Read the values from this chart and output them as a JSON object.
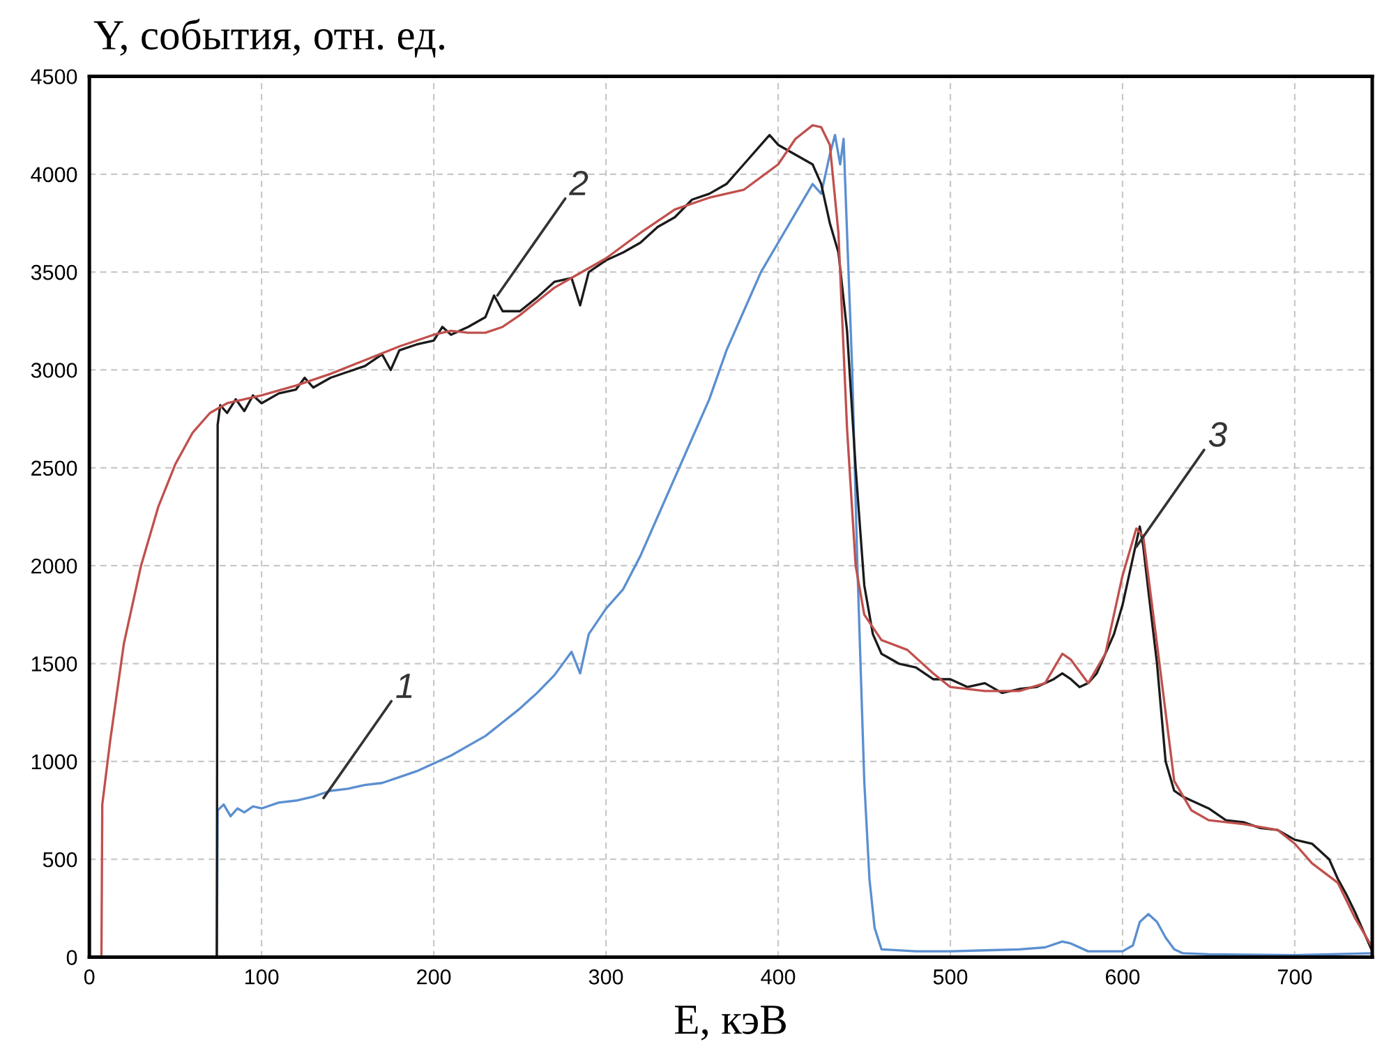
{
  "chart_data": {
    "type": "line",
    "ylabel": "Y, события, отн. ед.",
    "xlabel": "E, кэВ",
    "xlim": [
      0,
      745
    ],
    "ylim": [
      0,
      4500
    ],
    "xticks": [
      0,
      100,
      200,
      300,
      400,
      500,
      600,
      700
    ],
    "yticks": [
      0,
      500,
      1000,
      1500,
      2000,
      2500,
      3000,
      3500,
      4000,
      4500
    ],
    "grid": true,
    "series": [
      {
        "color": "#5b8fd0",
        "x": [
          0,
          74,
          74.5,
          78,
          82,
          86,
          90,
          95,
          100,
          110,
          120,
          130,
          140,
          150,
          160,
          170,
          180,
          190,
          200,
          210,
          220,
          230,
          240,
          250,
          260,
          270,
          280,
          285,
          290,
          300,
          310,
          320,
          330,
          340,
          350,
          360,
          370,
          380,
          390,
          400,
          410,
          420,
          425,
          430,
          433,
          436,
          438,
          440,
          443,
          446,
          450,
          453,
          456,
          460,
          480,
          500,
          520,
          540,
          555,
          565,
          570,
          580,
          600,
          606,
          610,
          615,
          620,
          625,
          630,
          635,
          650,
          700,
          745
        ],
        "values": [
          0,
          0,
          750,
          780,
          720,
          760,
          740,
          770,
          760,
          790,
          800,
          820,
          850,
          860,
          880,
          890,
          920,
          950,
          990,
          1030,
          1080,
          1130,
          1200,
          1270,
          1350,
          1440,
          1560,
          1450,
          1650,
          1780,
          1880,
          2050,
          2250,
          2450,
          2650,
          2850,
          3100,
          3300,
          3500,
          3650,
          3800,
          3950,
          3900,
          4100,
          4200,
          4050,
          4180,
          3700,
          3000,
          2000,
          900,
          400,
          150,
          40,
          30,
          30,
          35,
          40,
          50,
          80,
          70,
          30,
          30,
          60,
          180,
          220,
          180,
          100,
          40,
          20,
          15,
          10,
          20
        ]
      },
      {
        "color": "#1a1a1a",
        "x": [
          0,
          74,
          74.5,
          76,
          80,
          85,
          90,
          95,
          100,
          110,
          120,
          125,
          130,
          140,
          150,
          160,
          170,
          175,
          180,
          190,
          200,
          205,
          210,
          220,
          230,
          235,
          240,
          250,
          260,
          270,
          280,
          285,
          290,
          300,
          310,
          320,
          330,
          340,
          350,
          360,
          370,
          380,
          390,
          395,
          400,
          410,
          420,
          425,
          430,
          435,
          440,
          445,
          450,
          455,
          460,
          470,
          480,
          490,
          500,
          510,
          520,
          530,
          540,
          550,
          560,
          565,
          570,
          575,
          580,
          585,
          590,
          595,
          600,
          605,
          610,
          612,
          615,
          620,
          625,
          630,
          635,
          640,
          650,
          660,
          670,
          680,
          690,
          700,
          710,
          720,
          725,
          730,
          735,
          740,
          745
        ],
        "values": [
          0,
          0,
          2720,
          2820,
          2780,
          2850,
          2790,
          2870,
          2830,
          2880,
          2900,
          2960,
          2910,
          2960,
          2990,
          3020,
          3080,
          3000,
          3100,
          3130,
          3150,
          3220,
          3180,
          3220,
          3270,
          3380,
          3300,
          3300,
          3370,
          3450,
          3470,
          3330,
          3500,
          3560,
          3600,
          3650,
          3730,
          3780,
          3870,
          3900,
          3950,
          4050,
          4150,
          4200,
          4150,
          4100,
          4050,
          3950,
          3750,
          3600,
          3200,
          2500,
          1900,
          1650,
          1550,
          1500,
          1480,
          1420,
          1420,
          1380,
          1400,
          1350,
          1370,
          1380,
          1420,
          1450,
          1420,
          1380,
          1400,
          1450,
          1550,
          1650,
          1800,
          2000,
          2200,
          2100,
          1870,
          1500,
          1000,
          850,
          820,
          800,
          760,
          700,
          690,
          660,
          650,
          600,
          580,
          500,
          400,
          320,
          230,
          130,
          30
        ]
      },
      {
        "color": "#c0504d",
        "x": [
          0,
          7,
          7.5,
          12,
          20,
          30,
          40,
          50,
          60,
          70,
          80,
          100,
          120,
          140,
          160,
          180,
          200,
          210,
          220,
          230,
          240,
          250,
          260,
          270,
          280,
          300,
          320,
          340,
          360,
          380,
          400,
          410,
          420,
          425,
          430,
          435,
          440,
          445,
          450,
          460,
          475,
          490,
          500,
          520,
          540,
          555,
          565,
          570,
          580,
          590,
          600,
          608,
          612,
          620,
          630,
          640,
          650,
          670,
          690,
          700,
          710,
          725,
          735,
          745
        ],
        "values": [
          0,
          0,
          780,
          1100,
          1600,
          2000,
          2300,
          2520,
          2680,
          2780,
          2830,
          2870,
          2920,
          2980,
          3050,
          3120,
          3180,
          3200,
          3190,
          3190,
          3220,
          3280,
          3350,
          3420,
          3470,
          3570,
          3700,
          3820,
          3880,
          3920,
          4050,
          4180,
          4250,
          4240,
          4150,
          3700,
          2700,
          2000,
          1750,
          1620,
          1570,
          1450,
          1380,
          1360,
          1360,
          1400,
          1550,
          1520,
          1400,
          1550,
          1950,
          2190,
          2150,
          1600,
          900,
          750,
          700,
          680,
          650,
          580,
          480,
          380,
          200,
          50
        ]
      }
    ],
    "annotations": [
      {
        "text": "1",
        "x": 136,
        "y": 813
      },
      {
        "text": "2",
        "x": 237,
        "y": 3381
      },
      {
        "text": "3",
        "x": 608,
        "y": 2097
      }
    ]
  }
}
